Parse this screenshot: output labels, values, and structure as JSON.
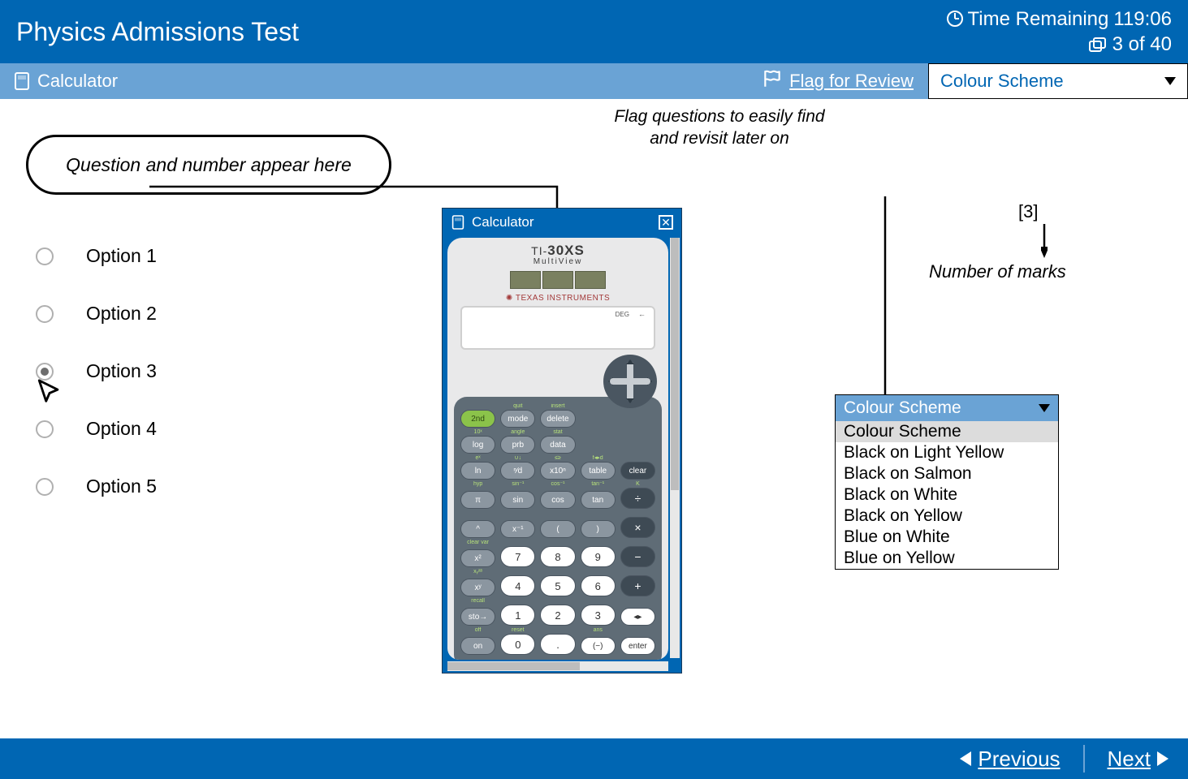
{
  "colors": {
    "primary": "#0066b3",
    "secondary": "#6aa3d5",
    "white": "#ffffff",
    "text": "#000000"
  },
  "topbar": {
    "title": "Physics Admissions Test",
    "time_label": "Time Remaining",
    "time_value": "119:06",
    "progress": "3 of 40"
  },
  "subbar": {
    "calculator": "Calculator",
    "flag": "Flag for Review",
    "scheme": "Colour Scheme"
  },
  "annotations": {
    "flag_note_l1": "Flag questions to easily find",
    "flag_note_l2": "and revisit later on",
    "question_bubble": "Question and number appear here",
    "marks_value": "[3]",
    "marks_label": "Number of marks"
  },
  "options": [
    {
      "label": "Option 1",
      "selected": false
    },
    {
      "label": "Option 2",
      "selected": false
    },
    {
      "label": "Option 3",
      "selected": true
    },
    {
      "label": "Option 4",
      "selected": false
    },
    {
      "label": "Option 5",
      "selected": false
    }
  ],
  "calculator": {
    "title": "Calculator",
    "brand_top": "TI-",
    "brand_bold": "30XS",
    "brand_sub": "MultiView",
    "ti": "✺ TEXAS INSTRUMENTS",
    "lcd_deg": "DEG",
    "lcd_arrow": "←",
    "top_labels_r1": [
      "",
      "quit",
      "insert"
    ],
    "keys_r1": [
      "2nd",
      "mode",
      "delete"
    ],
    "top_labels_r2": [
      "10ˣ",
      "angle",
      "stat"
    ],
    "keys_r2": [
      "log",
      "prb",
      "data"
    ],
    "top_labels_r3": [
      "eˣ",
      "∪↓",
      "≤≥",
      "f◂▸d"
    ],
    "keys_r3": [
      "ln",
      "ⁿ⁄d",
      "x10ⁿ",
      "table",
      "clear"
    ],
    "top_labels_r4": [
      "hyp",
      "sin⁻¹",
      "cos⁻¹",
      "tan⁻¹",
      "K"
    ],
    "keys_r4": [
      "π",
      "sin",
      "cos",
      "tan",
      "÷"
    ],
    "top_labels_r5": [
      "",
      "",
      "",
      "",
      ""
    ],
    "keys_r5": [
      "^",
      "x⁻¹",
      "(",
      ")",
      "×"
    ],
    "top_labels_r6": [
      "clear var",
      "",
      "",
      "",
      ""
    ],
    "keys_r6": [
      "x²",
      "7",
      "8",
      "9",
      "−"
    ],
    "top_labels_r7": [
      "xᵧᵃᵇ",
      "",
      "",
      "",
      ""
    ],
    "keys_r7": [
      "xʸ",
      "4",
      "5",
      "6",
      "+"
    ],
    "top_labels_r8": [
      "recall",
      "",
      "",
      "",
      ""
    ],
    "keys_r8": [
      "sto→",
      "1",
      "2",
      "3",
      "◂▸"
    ],
    "top_labels_r9": [
      "off",
      "reset",
      "",
      "ans",
      ""
    ],
    "keys_r9": [
      "on",
      "0",
      ".",
      "(−)",
      "enter"
    ]
  },
  "scheme_open": {
    "head": "Colour Scheme",
    "items": [
      "Colour Scheme",
      "Black on Light Yellow",
      "Black on Salmon",
      "Black on White",
      "Black on Yellow",
      "Blue on White",
      "Blue on Yellow"
    ]
  },
  "footer": {
    "prev": "Previous",
    "next": "Next"
  }
}
